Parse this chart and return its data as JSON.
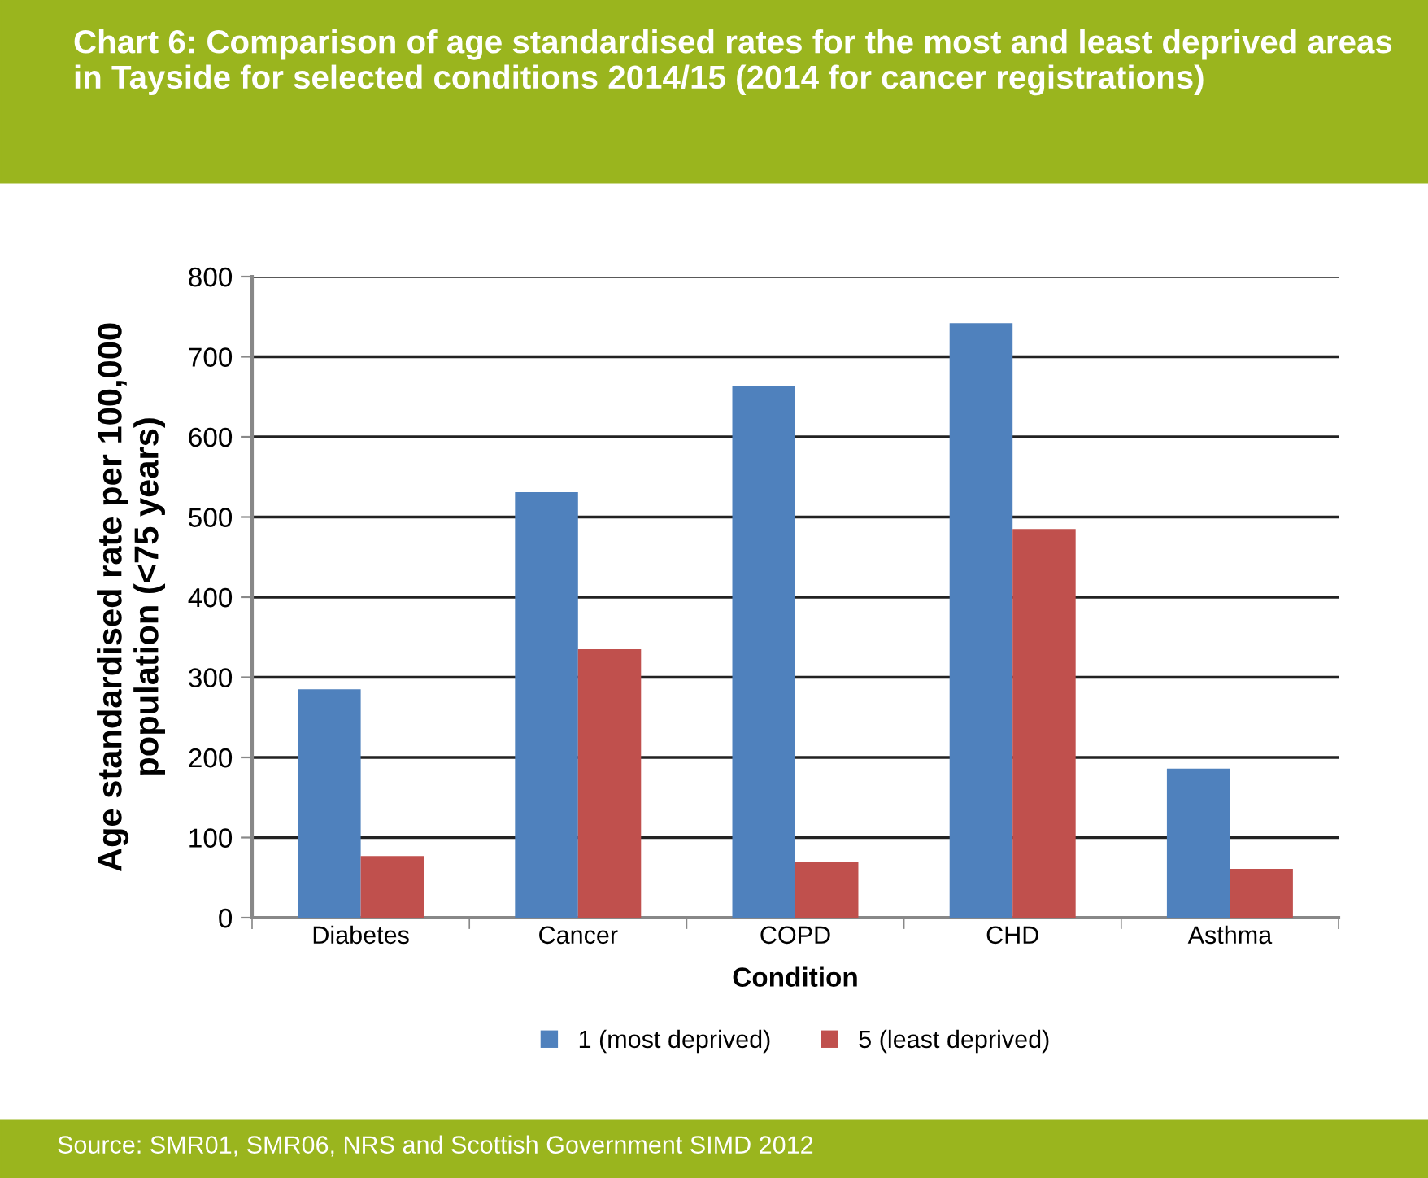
{
  "chart_data": {
    "type": "bar",
    "title": "Chart 6: Comparison of age standardised rates for the most and least deprived areas in Tayside for selected conditions 2014/15 (2014 for cancer registrations)",
    "xlabel": "Condition",
    "ylabel": "Age standardised rate per 100,000\npopulation (<75 years)",
    "categories": [
      "Diabetes",
      "Cancer",
      "COPD",
      "CHD",
      "Asthma"
    ],
    "series": [
      {
        "name": "1 (most deprived)",
        "color": "#4f81bd",
        "values": [
          285,
          531,
          664,
          742,
          186
        ]
      },
      {
        "name": "5 (least deprived)",
        "color": "#c0504d",
        "values": [
          77,
          335,
          69,
          485,
          61
        ]
      }
    ],
    "ylim": [
      0,
      800
    ],
    "yticks": [
      0,
      100,
      200,
      300,
      400,
      500,
      600,
      700,
      800
    ],
    "grid": "y",
    "legend": "bottom",
    "annotations": [
      "Source: SMR01, SMR06, NRS and Scottish Government SIMD 2012"
    ]
  }
}
